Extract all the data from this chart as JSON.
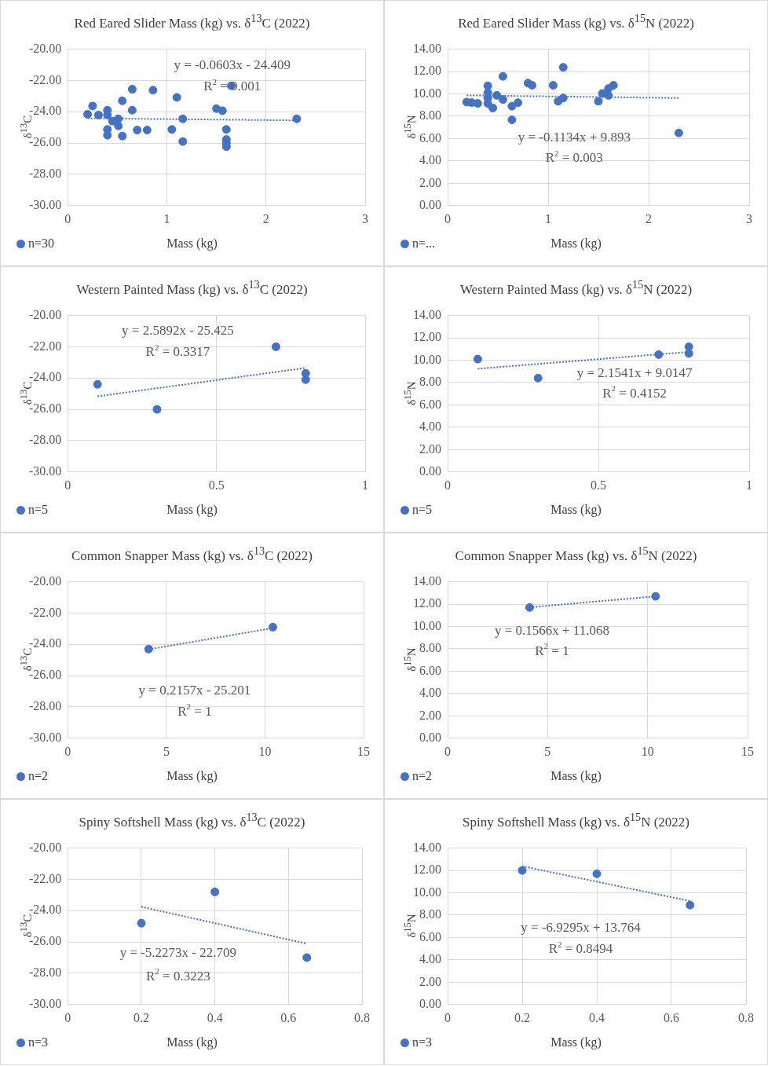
{
  "chart_data": [
    {
      "type": "scatter",
      "title": "Red Eared Slider Mass (kg) vs. δ$^{13}$C (2022)",
      "xlabel": "Mass (kg)",
      "ylabel": "δ$^{13}$C",
      "xlim": [
        0,
        3
      ],
      "xticks": [
        0,
        1,
        2,
        3
      ],
      "ylim": [
        -30,
        -20
      ],
      "yticks": [
        {
          "value": -30,
          "label": "-30.00"
        },
        {
          "value": -28,
          "label": "-28.00"
        },
        {
          "value": -26,
          "label": "-26.00"
        },
        {
          "value": -24,
          "label": "-24.00"
        },
        {
          "value": -22,
          "label": "-22.00"
        },
        {
          "value": -20,
          "label": "-20.00"
        }
      ],
      "grid": true,
      "legend": "bottom left",
      "series": [
        {
          "name": "n=30",
          "type": "scatter",
          "marker": "circle",
          "color": "#4472c4",
          "x": [
            0.2,
            0.25,
            0.31,
            0.36,
            0.4,
            0.4,
            0.4,
            0.4,
            0.45,
            0.51,
            0.51,
            0.55,
            0.55,
            0.65,
            0.65,
            0.7,
            0.8,
            0.86,
            1.05,
            1.1,
            1.16,
            1.16,
            1.5,
            1.56,
            1.6,
            1.6,
            1.6,
            1.6,
            1.65,
            2.31
          ],
          "values": [
            -24.16,
            -23.63,
            -24.21,
            null,
            -23.9,
            -24.2,
            -25.13,
            -25.5,
            -24.6,
            -24.45,
            -24.9,
            -23.3,
            -25.55,
            -22.56,
            -23.9,
            -25.17,
            -25.17,
            -22.62,
            -25.13,
            -23.08,
            -24.45,
            -25.9,
            -23.8,
            -23.93,
            -25.13,
            -25.77,
            -26.0,
            -26.23,
            -22.34,
            -24.45
          ]
        },
        {
          "type": "line",
          "marker": "none",
          "line_style": "dotted",
          "color": "#4472c4",
          "x": [
            0.2,
            2.31
          ],
          "values": [
            -24.42,
            -24.55
          ]
        }
      ],
      "annotations": [
        "y = -0.0603x - 24.409",
        "R$^{2}$ = 0.001"
      ]
    },
    {
      "type": "scatter",
      "title": "Red Eared Slider Mass (kg) vs. δ$^{15}$N (2022)",
      "xlabel": "Mass (kg)",
      "ylabel": "δ$^{15}$N",
      "xlim": [
        0,
        3
      ],
      "xticks": [
        0,
        1,
        2,
        3
      ],
      "ylim": [
        0,
        14
      ],
      "yticks": [
        {
          "value": 0,
          "label": "0.00"
        },
        {
          "value": 2,
          "label": "2.00"
        },
        {
          "value": 4,
          "label": "4.00"
        },
        {
          "value": 6,
          "label": "6.00"
        },
        {
          "value": 8,
          "label": "8.00"
        },
        {
          "value": 10,
          "label": "10.00"
        },
        {
          "value": 12,
          "label": "12.00"
        },
        {
          "value": 14,
          "label": "14.00"
        }
      ],
      "grid": true,
      "legend": "bottom left",
      "series": [
        {
          "name": "n=...",
          "type": "scatter",
          "marker": "circle",
          "color": "#4472c4",
          "x": [
            0.19,
            0.24,
            0.3,
            0.4,
            0.4,
            0.4,
            0.4,
            0.45,
            0.49,
            0.55,
            0.55,
            0.64,
            0.64,
            0.7,
            0.8,
            0.84,
            1.05,
            1.1,
            1.15,
            1.15,
            1.5,
            1.54,
            1.6,
            1.6,
            1.65,
            2.3
          ],
          "values": [
            9.27,
            9.22,
            9.15,
            10.72,
            10.11,
            9.63,
            9.14,
            8.73,
            9.87,
            11.57,
            9.5,
            8.9,
            7.68,
            9.21,
            10.96,
            10.77,
            10.77,
            9.34,
            9.63,
            12.38,
            9.34,
            10.04,
            10.48,
            9.87,
            10.77,
            6.51
          ]
        },
        {
          "type": "line",
          "marker": "none",
          "line_style": "dotted",
          "color": "#4472c4",
          "x": [
            0.19,
            2.3
          ],
          "values": [
            9.87,
            9.63
          ]
        }
      ],
      "annotations": [
        "y = -0.1134x + 9.893",
        "R$^{2}$ = 0.003"
      ]
    },
    {
      "type": "scatter",
      "title": "Western Painted Mass (kg) vs. δ$^{13}$C (2022)",
      "xlabel": "Mass (kg)",
      "ylabel": "δ$^{13}$C",
      "xlim": [
        0,
        1
      ],
      "xticks": [
        0,
        0.5,
        1
      ],
      "ylim": [
        -30,
        -20
      ],
      "yticks": [
        {
          "value": -30,
          "label": "-30.00"
        },
        {
          "value": -28,
          "label": "-28.00"
        },
        {
          "value": -26,
          "label": "-26.00"
        },
        {
          "value": -24,
          "label": "-24.00"
        },
        {
          "value": -22,
          "label": "-22.00"
        },
        {
          "value": -20,
          "label": "-20.00"
        }
      ],
      "grid": true,
      "legend": "bottom left",
      "series": [
        {
          "name": "n=5",
          "type": "scatter",
          "marker": "circle",
          "color": "#4472c4",
          "x": [
            0.1,
            0.3,
            0.7,
            0.8,
            0.8
          ],
          "values": [
            -24.4,
            -26.0,
            -22.0,
            -23.7,
            -24.1
          ]
        },
        {
          "type": "line",
          "marker": "none",
          "line_style": "dotted",
          "color": "#4472c4",
          "x": [
            0.1,
            0.8
          ],
          "values": [
            -25.17,
            -23.35
          ]
        }
      ],
      "annotations": [
        "y = 2.5892x - 25.425",
        "R$^{2}$ = 0.3317"
      ]
    },
    {
      "type": "scatter",
      "title": "Western Painted Mass (kg) vs. δ$^{15}$N (2022)",
      "xlabel": "Mass (kg)",
      "ylabel": "δ$^{15}$N",
      "xlim": [
        0,
        1
      ],
      "xticks": [
        0,
        0.5,
        1
      ],
      "ylim": [
        0,
        14
      ],
      "yticks": [
        {
          "value": 0,
          "label": "0.00"
        },
        {
          "value": 2,
          "label": "2.00"
        },
        {
          "value": 4,
          "label": "4.00"
        },
        {
          "value": 6,
          "label": "6.00"
        },
        {
          "value": 8,
          "label": "8.00"
        },
        {
          "value": 10,
          "label": "10.00"
        },
        {
          "value": 12,
          "label": "12.00"
        },
        {
          "value": 14,
          "label": "14.00"
        }
      ],
      "grid": true,
      "legend": "bottom left",
      "series": [
        {
          "name": "n=5",
          "type": "scatter",
          "marker": "circle",
          "color": "#4472c4",
          "x": [
            0.1,
            0.3,
            0.7,
            0.8,
            0.8
          ],
          "values": [
            10.1,
            8.4,
            10.5,
            11.2,
            10.6
          ]
        },
        {
          "type": "line",
          "marker": "none",
          "line_style": "dotted",
          "color": "#4472c4",
          "x": [
            0.1,
            0.8
          ],
          "values": [
            9.23,
            10.74
          ]
        }
      ],
      "annotations": [
        "y = 2.1541x + 9.0147",
        "R$^{2}$ = 0.4152"
      ]
    },
    {
      "type": "scatter",
      "title": "Common Snapper Mass (kg) vs. δ$^{13}$C (2022)",
      "xlabel": "Mass (kg)",
      "ylabel": "δ$^{13}$C",
      "xlim": [
        0,
        15
      ],
      "xticks": [
        0,
        5,
        10,
        15
      ],
      "ylim": [
        -30,
        -20
      ],
      "yticks": [
        {
          "value": -30,
          "label": "-30.00"
        },
        {
          "value": -28,
          "label": "-28.00"
        },
        {
          "value": -26,
          "label": "-26.00"
        },
        {
          "value": -24,
          "label": "-24.00"
        },
        {
          "value": -22,
          "label": "-22.00"
        },
        {
          "value": -20,
          "label": "-20.00"
        }
      ],
      "grid": true,
      "legend": "bottom left",
      "series": [
        {
          "name": "n=2",
          "type": "scatter",
          "marker": "circle",
          "color": "#4472c4",
          "x": [
            4.1,
            10.4
          ],
          "values": [
            -24.3,
            -22.9
          ]
        },
        {
          "type": "line",
          "marker": "none",
          "line_style": "dotted",
          "color": "#4472c4",
          "x": [
            4.1,
            10.4
          ],
          "values": [
            -24.32,
            -22.96
          ]
        }
      ],
      "annotations": [
        "y = 0.2157x - 25.201",
        "R$^{2}$ = 1"
      ]
    },
    {
      "type": "scatter",
      "title": "Common Snapper Mass (kg) vs. δ$^{15}$N (2022)",
      "xlabel": "Mass (kg)",
      "ylabel": "δ$^{15}$N",
      "xlim": [
        0,
        15
      ],
      "xticks": [
        0,
        5,
        10,
        15
      ],
      "ylim": [
        0,
        14
      ],
      "yticks": [
        {
          "value": 0,
          "label": "0.00"
        },
        {
          "value": 2,
          "label": "2.00"
        },
        {
          "value": 4,
          "label": "4.00"
        },
        {
          "value": 6,
          "label": "6.00"
        },
        {
          "value": 8,
          "label": "8.00"
        },
        {
          "value": 10,
          "label": "10.00"
        },
        {
          "value": 12,
          "label": "12.00"
        },
        {
          "value": 14,
          "label": "14.00"
        }
      ],
      "grid": true,
      "legend": "bottom left",
      "series": [
        {
          "name": "n=2",
          "type": "scatter",
          "marker": "circle",
          "color": "#4472c4",
          "x": [
            4.1,
            10.4
          ],
          "values": [
            11.7,
            12.7
          ]
        },
        {
          "type": "line",
          "marker": "none",
          "line_style": "dotted",
          "color": "#4472c4",
          "x": [
            4.1,
            10.4
          ],
          "values": [
            11.71,
            12.7
          ]
        }
      ],
      "annotations": [
        "y = 0.1566x + 11.068",
        "R$^{2}$ = 1"
      ]
    },
    {
      "type": "scatter",
      "title": "Spiny Softshell Mass (kg) vs. δ$^{13}$C (2022)",
      "xlabel": "Mass (kg)",
      "ylabel": "δ$^{13}$C",
      "xlim": [
        0,
        0.8
      ],
      "xticks": [
        0,
        0.2,
        0.4,
        0.6,
        0.8
      ],
      "ylim": [
        -30,
        -20
      ],
      "yticks": [
        {
          "value": -30,
          "label": "-30.00"
        },
        {
          "value": -28,
          "label": "-28.00"
        },
        {
          "value": -26,
          "label": "-26.00"
        },
        {
          "value": -24,
          "label": "-24.00"
        },
        {
          "value": -22,
          "label": "-22.00"
        },
        {
          "value": -20,
          "label": "-20.00"
        }
      ],
      "grid": true,
      "legend": "bottom left",
      "series": [
        {
          "name": "n=3",
          "type": "scatter",
          "marker": "circle",
          "color": "#4472c4",
          "x": [
            0.2,
            0.4,
            0.65
          ],
          "values": [
            -24.8,
            -22.8,
            -27.0
          ]
        },
        {
          "type": "line",
          "marker": "none",
          "line_style": "dotted",
          "color": "#4472c4",
          "x": [
            0.2,
            0.65
          ],
          "values": [
            -23.75,
            -26.11
          ]
        }
      ],
      "annotations": [
        "y = -5.2273x - 22.709",
        "R$^{2}$ = 0.3223"
      ]
    },
    {
      "type": "scatter",
      "title": "Spiny Softshell Mass (kg) vs. δ$^{15}$N (2022)",
      "xlabel": "Mass (kg)",
      "ylabel": "δ$^{15}$N",
      "xlim": [
        0,
        0.8
      ],
      "xticks": [
        0,
        0.2,
        0.4,
        0.6,
        0.8
      ],
      "ylim": [
        0,
        14
      ],
      "yticks": [
        {
          "value": 0,
          "label": "0.00"
        },
        {
          "value": 2,
          "label": "2.00"
        },
        {
          "value": 4,
          "label": "4.00"
        },
        {
          "value": 6,
          "label": "6.00"
        },
        {
          "value": 8,
          "label": "8.00"
        },
        {
          "value": 10,
          "label": "10.00"
        },
        {
          "value": 12,
          "label": "12.00"
        },
        {
          "value": 14,
          "label": "14.00"
        }
      ],
      "grid": true,
      "legend": "bottom left",
      "series": [
        {
          "name": "n=3",
          "type": "scatter",
          "marker": "circle",
          "color": "#4472c4",
          "x": [
            0.2,
            0.4,
            0.65
          ],
          "values": [
            12.0,
            11.7,
            8.9
          ]
        },
        {
          "type": "line",
          "marker": "none",
          "line_style": "dotted",
          "color": "#4472c4",
          "x": [
            0.2,
            0.65
          ],
          "values": [
            12.38,
            9.26
          ]
        }
      ],
      "annotations": [
        "y = -6.9295x + 13.764",
        "R$^{2}$ = 0.8494"
      ]
    }
  ]
}
